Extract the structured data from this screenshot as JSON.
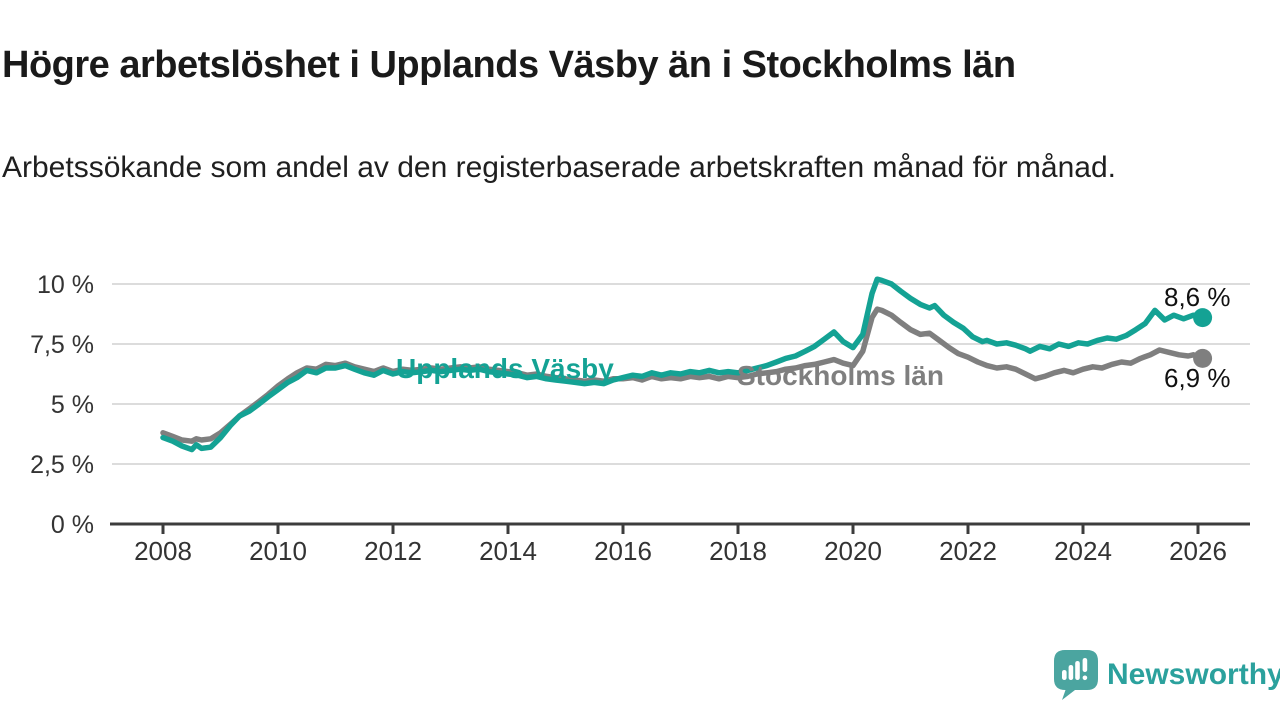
{
  "header": {
    "title": "Högre arbetslöshet i Upplands Väsby än i Stockholms län",
    "subtitle": "Arbetssökande som andel av den registerbaserade arbetskraften månad för månad."
  },
  "footer": {
    "brand": "Newsworthy",
    "logo_icon": "speech-bubble-bar-chart",
    "brand_color": "#2ba19d",
    "icon_color": "#4ba5a0"
  },
  "chart_data": {
    "type": "line",
    "title": "Högre arbetslöshet i Upplands Väsby än i Stockholms län",
    "subtitle": "Arbetssökande som andel av den registerbaserade arbetskraften månad för månad.",
    "unit": "%",
    "grid": true,
    "legend_position": "inline-labels-on-lines",
    "x_axis": {
      "domain": [
        2007.9,
        2026.9
      ],
      "ticks": [
        {
          "label": "2008",
          "year": 2008
        },
        {
          "label": "2010",
          "year": 2010
        },
        {
          "label": "2012",
          "year": 2012
        },
        {
          "label": "2014",
          "year": 2014
        },
        {
          "label": "2016",
          "year": 2016
        },
        {
          "label": "2018",
          "year": 2018
        },
        {
          "label": "2020",
          "year": 2020
        },
        {
          "label": "2022",
          "year": 2022
        },
        {
          "label": "2024",
          "year": 2024
        },
        {
          "label": "2026",
          "year": 2026
        }
      ]
    },
    "y_axis": {
      "domain": [
        0,
        10.5
      ],
      "ticks": [
        {
          "label": "10 %",
          "value": 10
        },
        {
          "label": "7,5 %",
          "value": 7.5
        },
        {
          "label": "5 %",
          "value": 5
        },
        {
          "label": "2,5 %",
          "value": 2.5
        },
        {
          "label": "0 %",
          "value": 0
        }
      ]
    },
    "colors": {
      "upplands_vasby": "#14a294",
      "stockholms_lan": "#7f7f7f",
      "grid": "#dcdcdc",
      "axis": "#3c3c3c",
      "tick_text": "#333333",
      "value_text": "#111111"
    },
    "series": [
      {
        "name": "Stockholms län",
        "label_text": "Stockholms län",
        "end_label": "6,9 %",
        "end_value": 6.9,
        "color": "#7f7f7f",
        "points": [
          [
            2008.0,
            3.8
          ],
          [
            2008.17,
            3.65
          ],
          [
            2008.33,
            3.5
          ],
          [
            2008.5,
            3.45
          ],
          [
            2008.58,
            3.55
          ],
          [
            2008.67,
            3.5
          ],
          [
            2008.83,
            3.55
          ],
          [
            2009.0,
            3.8
          ],
          [
            2009.17,
            4.15
          ],
          [
            2009.33,
            4.5
          ],
          [
            2009.5,
            4.8
          ],
          [
            2009.67,
            5.1
          ],
          [
            2009.83,
            5.4
          ],
          [
            2010.0,
            5.75
          ],
          [
            2010.17,
            6.05
          ],
          [
            2010.33,
            6.3
          ],
          [
            2010.5,
            6.5
          ],
          [
            2010.67,
            6.45
          ],
          [
            2010.83,
            6.65
          ],
          [
            2011.0,
            6.6
          ],
          [
            2011.17,
            6.7
          ],
          [
            2011.33,
            6.55
          ],
          [
            2011.5,
            6.45
          ],
          [
            2011.67,
            6.35
          ],
          [
            2011.83,
            6.5
          ],
          [
            2012.0,
            6.35
          ],
          [
            2012.17,
            6.45
          ],
          [
            2012.33,
            6.4
          ],
          [
            2012.5,
            6.45
          ],
          [
            2012.67,
            6.5
          ],
          [
            2012.83,
            6.45
          ],
          [
            2013.0,
            6.5
          ],
          [
            2013.17,
            6.55
          ],
          [
            2013.33,
            6.5
          ],
          [
            2013.5,
            6.55
          ],
          [
            2013.67,
            6.45
          ],
          [
            2013.83,
            6.4
          ],
          [
            2014.0,
            6.35
          ],
          [
            2014.17,
            6.3
          ],
          [
            2014.33,
            6.2
          ],
          [
            2014.5,
            6.25
          ],
          [
            2014.67,
            6.15
          ],
          [
            2014.83,
            6.1
          ],
          [
            2015.0,
            6.05
          ],
          [
            2015.17,
            6.0
          ],
          [
            2015.33,
            5.95
          ],
          [
            2015.5,
            6.0
          ],
          [
            2015.67,
            5.95
          ],
          [
            2015.83,
            6.05
          ],
          [
            2016.0,
            6.05
          ],
          [
            2016.17,
            6.1
          ],
          [
            2016.33,
            6.0
          ],
          [
            2016.5,
            6.15
          ],
          [
            2016.67,
            6.05
          ],
          [
            2016.83,
            6.1
          ],
          [
            2017.0,
            6.05
          ],
          [
            2017.17,
            6.15
          ],
          [
            2017.33,
            6.1
          ],
          [
            2017.5,
            6.15
          ],
          [
            2017.67,
            6.05
          ],
          [
            2017.83,
            6.15
          ],
          [
            2018.0,
            6.1
          ],
          [
            2018.17,
            6.15
          ],
          [
            2018.33,
            6.25
          ],
          [
            2018.5,
            6.3
          ],
          [
            2018.67,
            6.35
          ],
          [
            2018.83,
            6.45
          ],
          [
            2019.0,
            6.5
          ],
          [
            2019.17,
            6.6
          ],
          [
            2019.33,
            6.65
          ],
          [
            2019.5,
            6.75
          ],
          [
            2019.67,
            6.85
          ],
          [
            2019.83,
            6.7
          ],
          [
            2020.0,
            6.6
          ],
          [
            2020.17,
            7.2
          ],
          [
            2020.33,
            8.6
          ],
          [
            2020.42,
            8.95
          ],
          [
            2020.5,
            8.9
          ],
          [
            2020.67,
            8.7
          ],
          [
            2020.83,
            8.4
          ],
          [
            2021.0,
            8.1
          ],
          [
            2021.17,
            7.9
          ],
          [
            2021.33,
            7.95
          ],
          [
            2021.5,
            7.65
          ],
          [
            2021.67,
            7.35
          ],
          [
            2021.83,
            7.1
          ],
          [
            2022.0,
            6.95
          ],
          [
            2022.17,
            6.75
          ],
          [
            2022.33,
            6.6
          ],
          [
            2022.5,
            6.5
          ],
          [
            2022.67,
            6.55
          ],
          [
            2022.83,
            6.45
          ],
          [
            2023.0,
            6.25
          ],
          [
            2023.17,
            6.05
          ],
          [
            2023.33,
            6.15
          ],
          [
            2023.5,
            6.3
          ],
          [
            2023.67,
            6.4
          ],
          [
            2023.83,
            6.3
          ],
          [
            2024.0,
            6.45
          ],
          [
            2024.17,
            6.55
          ],
          [
            2024.33,
            6.5
          ],
          [
            2024.5,
            6.65
          ],
          [
            2024.67,
            6.75
          ],
          [
            2024.83,
            6.7
          ],
          [
            2025.0,
            6.9
          ],
          [
            2025.17,
            7.05
          ],
          [
            2025.33,
            7.25
          ],
          [
            2025.5,
            7.15
          ],
          [
            2025.67,
            7.05
          ],
          [
            2025.83,
            7.0
          ],
          [
            2025.92,
            7.05
          ],
          [
            2026.08,
            6.9
          ]
        ]
      },
      {
        "name": "Upplands Väsby",
        "label_text": "Upplands Väsby",
        "end_label": "8,6 %",
        "end_value": 8.6,
        "color": "#14a294",
        "points": [
          [
            2008.0,
            3.6
          ],
          [
            2008.17,
            3.45
          ],
          [
            2008.33,
            3.25
          ],
          [
            2008.5,
            3.1
          ],
          [
            2008.58,
            3.3
          ],
          [
            2008.67,
            3.15
          ],
          [
            2008.83,
            3.2
          ],
          [
            2009.0,
            3.6
          ],
          [
            2009.17,
            4.1
          ],
          [
            2009.33,
            4.5
          ],
          [
            2009.5,
            4.7
          ],
          [
            2009.67,
            5.0
          ],
          [
            2009.83,
            5.3
          ],
          [
            2010.0,
            5.6
          ],
          [
            2010.17,
            5.9
          ],
          [
            2010.33,
            6.1
          ],
          [
            2010.5,
            6.4
          ],
          [
            2010.67,
            6.3
          ],
          [
            2010.83,
            6.5
          ],
          [
            2011.0,
            6.5
          ],
          [
            2011.17,
            6.6
          ],
          [
            2011.33,
            6.45
          ],
          [
            2011.5,
            6.3
          ],
          [
            2011.67,
            6.2
          ],
          [
            2011.83,
            6.4
          ],
          [
            2012.0,
            6.25
          ],
          [
            2012.17,
            6.35
          ],
          [
            2012.33,
            6.3
          ],
          [
            2012.5,
            6.35
          ],
          [
            2012.67,
            6.4
          ],
          [
            2012.83,
            6.35
          ],
          [
            2013.0,
            6.4
          ],
          [
            2013.17,
            6.45
          ],
          [
            2013.33,
            6.4
          ],
          [
            2013.5,
            6.45
          ],
          [
            2013.67,
            6.35
          ],
          [
            2013.83,
            6.3
          ],
          [
            2014.0,
            6.25
          ],
          [
            2014.17,
            6.2
          ],
          [
            2014.33,
            6.1
          ],
          [
            2014.5,
            6.15
          ],
          [
            2014.67,
            6.05
          ],
          [
            2014.83,
            6.0
          ],
          [
            2015.0,
            5.95
          ],
          [
            2015.17,
            5.9
          ],
          [
            2015.33,
            5.85
          ],
          [
            2015.5,
            5.9
          ],
          [
            2015.67,
            5.85
          ],
          [
            2015.83,
            6.0
          ],
          [
            2016.0,
            6.1
          ],
          [
            2016.17,
            6.2
          ],
          [
            2016.33,
            6.15
          ],
          [
            2016.5,
            6.3
          ],
          [
            2016.67,
            6.2
          ],
          [
            2016.83,
            6.3
          ],
          [
            2017.0,
            6.25
          ],
          [
            2017.17,
            6.35
          ],
          [
            2017.33,
            6.3
          ],
          [
            2017.5,
            6.4
          ],
          [
            2017.67,
            6.3
          ],
          [
            2017.83,
            6.35
          ],
          [
            2018.0,
            6.3
          ],
          [
            2018.17,
            6.4
          ],
          [
            2018.33,
            6.5
          ],
          [
            2018.5,
            6.6
          ],
          [
            2018.67,
            6.75
          ],
          [
            2018.83,
            6.9
          ],
          [
            2019.0,
            7.0
          ],
          [
            2019.17,
            7.2
          ],
          [
            2019.33,
            7.4
          ],
          [
            2019.5,
            7.7
          ],
          [
            2019.67,
            8.0
          ],
          [
            2019.83,
            7.6
          ],
          [
            2020.0,
            7.35
          ],
          [
            2020.17,
            7.9
          ],
          [
            2020.33,
            9.6
          ],
          [
            2020.42,
            10.2
          ],
          [
            2020.5,
            10.15
          ],
          [
            2020.67,
            10.0
          ],
          [
            2020.83,
            9.7
          ],
          [
            2021.0,
            9.4
          ],
          [
            2021.17,
            9.15
          ],
          [
            2021.33,
            9.0
          ],
          [
            2021.42,
            9.1
          ],
          [
            2021.58,
            8.7
          ],
          [
            2021.75,
            8.4
          ],
          [
            2021.92,
            8.15
          ],
          [
            2022.08,
            7.8
          ],
          [
            2022.25,
            7.6
          ],
          [
            2022.33,
            7.65
          ],
          [
            2022.5,
            7.5
          ],
          [
            2022.67,
            7.55
          ],
          [
            2022.83,
            7.45
          ],
          [
            2023.0,
            7.3
          ],
          [
            2023.08,
            7.2
          ],
          [
            2023.25,
            7.4
          ],
          [
            2023.42,
            7.3
          ],
          [
            2023.58,
            7.5
          ],
          [
            2023.75,
            7.4
          ],
          [
            2023.92,
            7.55
          ],
          [
            2024.08,
            7.5
          ],
          [
            2024.25,
            7.65
          ],
          [
            2024.42,
            7.75
          ],
          [
            2024.58,
            7.7
          ],
          [
            2024.75,
            7.85
          ],
          [
            2024.92,
            8.1
          ],
          [
            2025.08,
            8.35
          ],
          [
            2025.25,
            8.9
          ],
          [
            2025.42,
            8.5
          ],
          [
            2025.58,
            8.7
          ],
          [
            2025.75,
            8.55
          ],
          [
            2025.92,
            8.7
          ],
          [
            2026.08,
            8.6
          ]
        ]
      }
    ]
  }
}
